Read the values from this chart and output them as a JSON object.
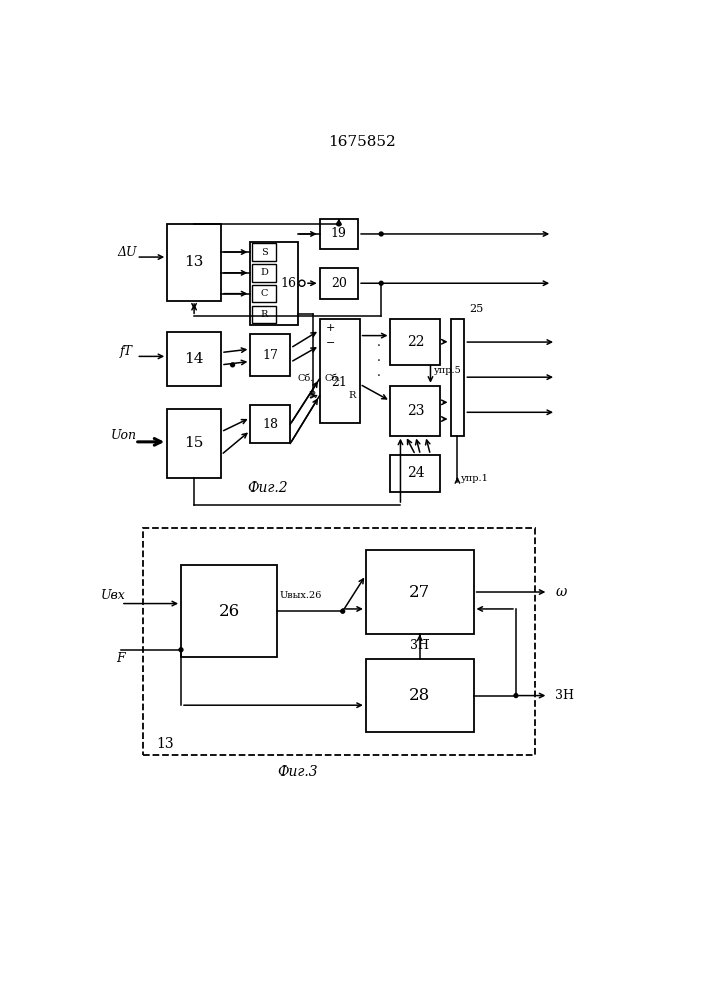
{
  "title": "1675852",
  "fig1_label": "Фиг.2",
  "fig2_label": "Фиг.3",
  "background_color": "#ffffff",
  "lw": 1.0,
  "blw": 1.3
}
